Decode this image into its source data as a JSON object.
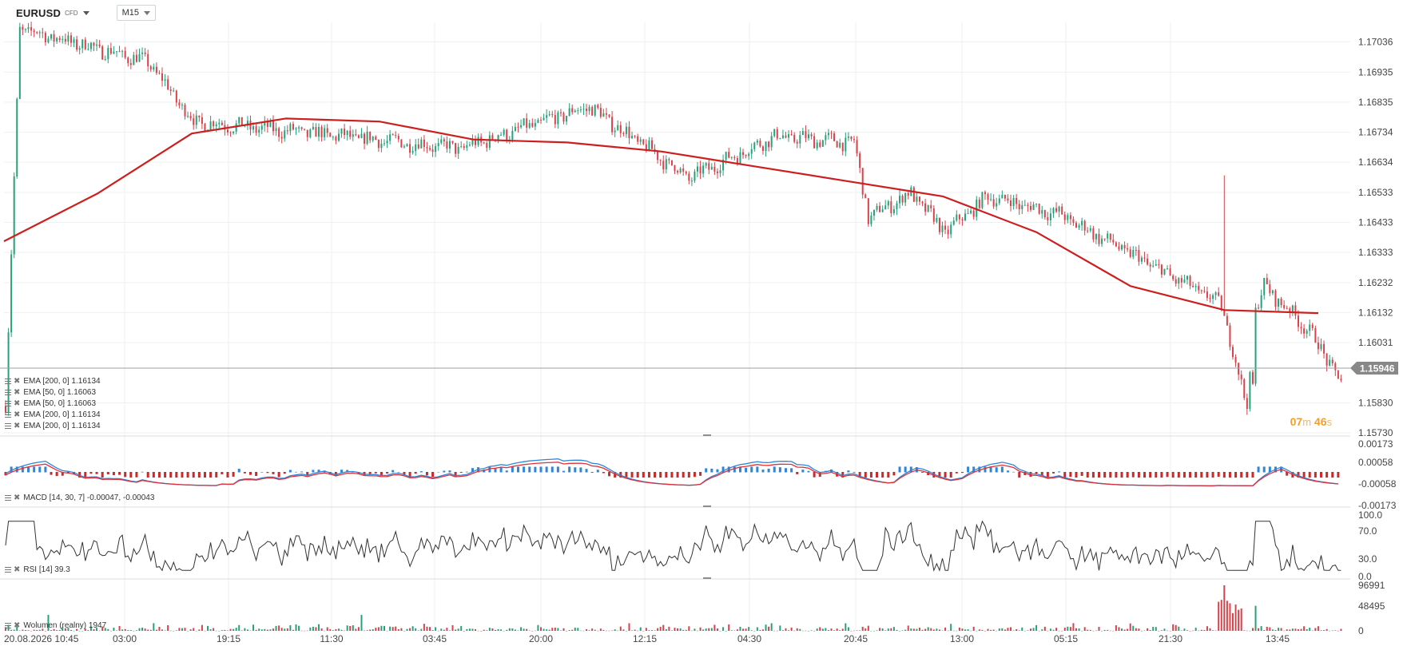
{
  "toolbar": {
    "symbol": "EURUSD",
    "instrument_type": "CFD",
    "timeframe": "M15"
  },
  "price_axis": {
    "labels": [
      "1.17036",
      "1.16935",
      "1.16835",
      "1.16734",
      "1.16634",
      "1.16533",
      "1.16433",
      "1.16333",
      "1.16232",
      "1.16132",
      "1.16031",
      "1.15830",
      "1.15730"
    ],
    "current_price": "1.15946"
  },
  "macd_axis": {
    "labels": [
      "0.00173",
      "0.00058",
      "-0.00058",
      "-0.00173"
    ]
  },
  "rsi_axis": {
    "labels": [
      "100.0",
      "70.0",
      "30.0",
      "0.0"
    ]
  },
  "volume_axis": {
    "labels": [
      "96991",
      "48495",
      "0"
    ]
  },
  "time_axis": {
    "labels": [
      "20.08.2026 10:45",
      "03:00",
      "19:15",
      "11:30",
      "03:45",
      "20:00",
      "12:15",
      "04:30",
      "20:45",
      "13:00",
      "05:15",
      "21:30",
      "13:45"
    ]
  },
  "legends": {
    "ema": [
      "EMA [200, 0] 1.16134",
      "EMA [50, 0] 1.16063",
      "EMA [50, 0] 1.16063",
      "EMA [200, 0] 1.16134",
      "EMA [200, 0] 1.16134"
    ],
    "macd": "MACD [14, 30, 7] -0.00047, -0.00043",
    "rsi": "RSI [14] 39.3",
    "volume": "Wolumen (realny) 1947"
  },
  "countdown": {
    "minutes": "07",
    "minutes_unit": "m",
    "seconds": "46",
    "seconds_unit": "s"
  },
  "colors": {
    "up": "#26a17a",
    "down": "#d9424a",
    "ema": "#cc1f1f",
    "macd_line": "#2f86d6",
    "signal_line": "#e0303a",
    "rsi_line": "#333333",
    "grid": "#eef0f2",
    "current_price_tag": "#888888"
  },
  "chart_data": {
    "type": "candlestick",
    "timeframe": "M15",
    "price_range": [
      1.1573,
      1.1708
    ],
    "key_prices": [
      1.1582,
      1.1708,
      1.1697,
      1.1677,
      1.1668,
      1.1682,
      1.1658,
      1.1672,
      1.167,
      1.1645,
      1.1653,
      1.164,
      1.1652,
      1.1646,
      1.1616,
      1.1581,
      1.1592,
      1.159,
      1.1614,
      1.1622,
      1.1607,
      1.159
    ],
    "ema200": [
      1.1637,
      1.1653,
      1.1673,
      1.1678,
      1.1677,
      1.1671,
      1.167,
      1.1667,
      1.1662,
      1.1657,
      1.1652,
      1.164,
      1.1622,
      1.1614,
      1.1613
    ],
    "rsi_last": 39.3,
    "volume_last": 1947,
    "volume_max": 96991
  }
}
